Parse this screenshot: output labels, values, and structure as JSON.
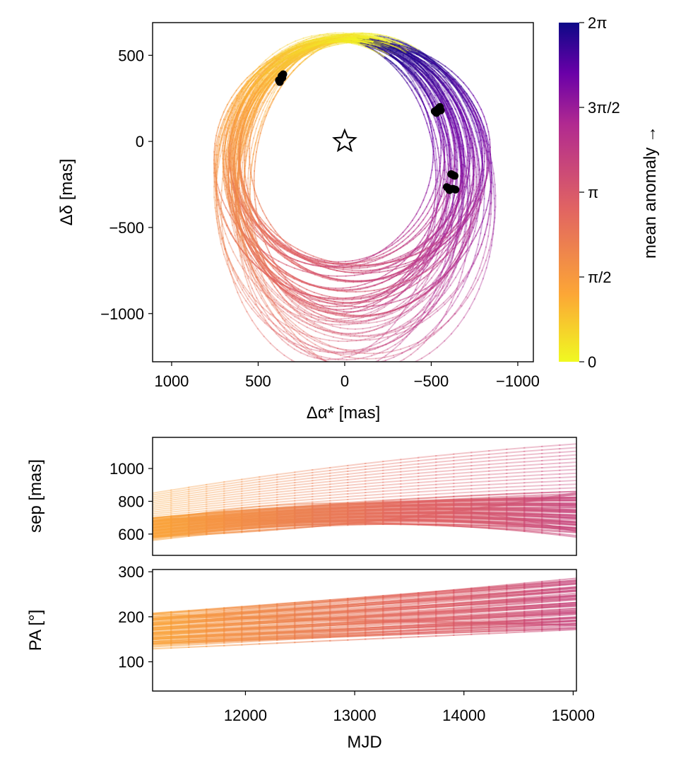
{
  "chart_data": [
    {
      "type": "line",
      "panel": "sky",
      "xlabel": "Δα* [mas]",
      "ylabel": "Δδ [mas]",
      "xlim": [
        1110,
        -1090
      ],
      "ylim": [
        -1280,
        690
      ],
      "x_inverted": true,
      "xticks": [
        1000,
        500,
        0,
        -500,
        -1000
      ],
      "xtick_labels": [
        "1000",
        "500",
        "0",
        "−500",
        "−1000"
      ],
      "yticks": [
        500,
        0,
        -500,
        -1000
      ],
      "ytick_labels": [
        "500",
        "0",
        "−500",
        "−1000"
      ],
      "star": {
        "x": 0,
        "y": 0,
        "marker": "star"
      },
      "observations": [
        {
          "x": 370,
          "y": 360
        },
        {
          "x": 360,
          "y": 370
        },
        {
          "x": 375,
          "y": 345
        },
        {
          "x": 365,
          "y": 380
        },
        {
          "x": 380,
          "y": 355
        },
        {
          "x": 355,
          "y": 390
        },
        {
          "x": -520,
          "y": 175
        },
        {
          "x": -535,
          "y": 185
        },
        {
          "x": -545,
          "y": 195
        },
        {
          "x": -555,
          "y": 180
        },
        {
          "x": -530,
          "y": 165
        },
        {
          "x": -550,
          "y": 200
        },
        {
          "x": -615,
          "y": -190
        },
        {
          "x": -625,
          "y": -195
        },
        {
          "x": -635,
          "y": -200
        },
        {
          "x": -590,
          "y": -265
        },
        {
          "x": -600,
          "y": -272
        },
        {
          "x": -612,
          "y": -278
        },
        {
          "x": -625,
          "y": -275
        },
        {
          "x": -640,
          "y": -280
        },
        {
          "x": -605,
          "y": -283
        }
      ],
      "orbit_family": {
        "n_orbits": 60,
        "nominal": {
          "x_center": 20,
          "y_center": -180,
          "semi_x": 660,
          "semi_y": 780
        },
        "note_colors": "orbits colored by mean anomaly"
      },
      "grid": false
    },
    {
      "type": "colorbar",
      "label": "mean anomaly →",
      "range": [
        0,
        6.2832
      ],
      "ticks": [
        0,
        1.5708,
        3.1416,
        4.7124,
        6.2832
      ],
      "tick_labels": [
        "0",
        "π/2",
        "π",
        "3π/2",
        "2π"
      ],
      "colormap": "plasma",
      "colors": [
        "#f0f921",
        "#fca636",
        "#e16462",
        "#b12a90",
        "#6a00a8",
        "#0d0887"
      ]
    },
    {
      "type": "line",
      "panel": "separation",
      "ylabel": "sep [mas]",
      "xlim": [
        11150,
        15030
      ],
      "ylim": [
        470,
        1190
      ],
      "yticks": [
        600,
        800,
        1000
      ],
      "ytick_labels": [
        "600",
        "800",
        "1000"
      ],
      "band": {
        "x": [
          11150,
          13000,
          15030
        ],
        "low": [
          560,
          650,
          580
        ],
        "high": [
          700,
          800,
          860
        ],
        "outliers_high": [
          [
            11150,
            850
          ],
          [
            13000,
            1030
          ],
          [
            15030,
            1150
          ]
        ]
      },
      "grid": false
    },
    {
      "type": "line",
      "panel": "position_angle",
      "ylabel": "PA [°]",
      "xlabel": "MJD",
      "xlim": [
        11150,
        15030
      ],
      "ylim": [
        35,
        305
      ],
      "yticks": [
        100,
        200,
        300
      ],
      "ytick_labels": [
        "100",
        "200",
        "300"
      ],
      "xticks": [
        12000,
        13000,
        14000,
        15000
      ],
      "xtick_labels": [
        "12000",
        "13000",
        "14000",
        "15000"
      ],
      "band": {
        "x": [
          11150,
          15030
        ],
        "low": [
          128,
          165
        ],
        "high": [
          208,
          290
        ]
      },
      "grid": false
    }
  ]
}
